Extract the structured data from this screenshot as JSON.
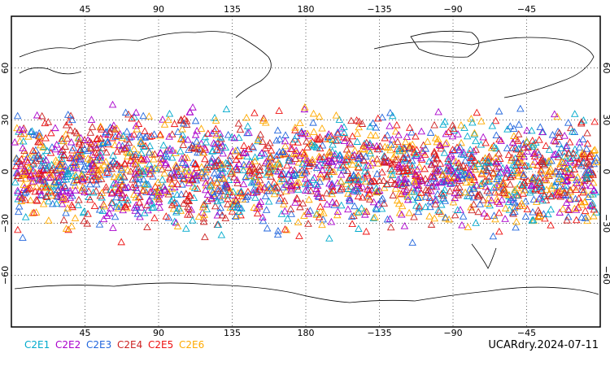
{
  "legend": [
    {
      "name": "C2E1",
      "color": "#00aacc"
    },
    {
      "name": "C2E2",
      "color": "#aa00cc"
    },
    {
      "name": "C2E3",
      "color": "#2266dd"
    },
    {
      "name": "C2E4",
      "color": "#cc2222"
    },
    {
      "name": "C2E5",
      "color": "#ee1111"
    },
    {
      "name": "C2E6",
      "color": "#ffaa00"
    }
  ],
  "stamp": "UCARdry.2024-07-11",
  "map": {
    "lon_ticks_top": [
      "45",
      "90",
      "135",
      "180",
      "−135",
      "−90",
      "−45"
    ],
    "lon_ticks_bottom": [
      "45",
      "90",
      "135",
      "180",
      "−135",
      "−90",
      "−45"
    ],
    "lat_ticks": [
      "60",
      "30",
      "0",
      "−30",
      "−60"
    ],
    "marker_shape": "triangle-outline",
    "projection": "equirectangular, centered 180",
    "lat_range": [
      -90,
      90
    ],
    "lon_range": [
      0,
      360
    ],
    "obs_lat_band": [
      -45,
      45
    ]
  }
}
